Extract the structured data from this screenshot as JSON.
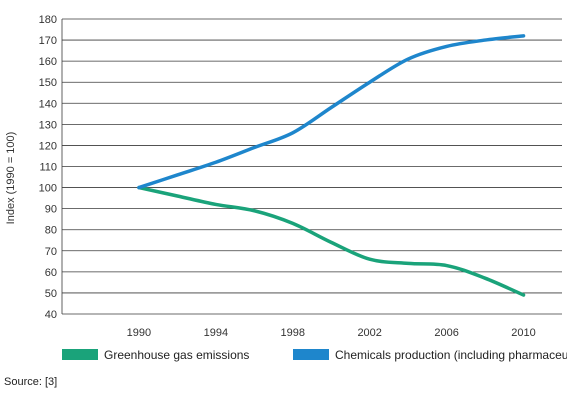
{
  "chart_data": {
    "type": "line",
    "title": "",
    "xlabel": "",
    "ylabel": "Index (1990 = 100)",
    "ylim": [
      40,
      180
    ],
    "yticks": [
      40,
      50,
      60,
      70,
      80,
      90,
      100,
      110,
      120,
      130,
      140,
      150,
      160,
      170,
      180
    ],
    "xlim": [
      1986,
      2012
    ],
    "xticks": [
      1990,
      1994,
      1998,
      2002,
      2006,
      2010
    ],
    "grid": "horizontal",
    "legend_placement": "bottom",
    "series": [
      {
        "name": "Greenhouse gas emissions",
        "color": "#1aa37a",
        "x": [
          1990,
          1992,
          1994,
          1996,
          1998,
          2000,
          2002,
          2004,
          2006,
          2008,
          2010
        ],
        "y": [
          100,
          96,
          92,
          89,
          83,
          74,
          66,
          64,
          63,
          57,
          49
        ]
      },
      {
        "name": "Chemicals production (including pharmaceuticals)",
        "color": "#1e86cc",
        "x": [
          1990,
          1992,
          1994,
          1996,
          1998,
          2000,
          2002,
          2004,
          2006,
          2008,
          2010
        ],
        "y": [
          100,
          106,
          112,
          119,
          126,
          138,
          150,
          161,
          167,
          170,
          172
        ]
      }
    ]
  },
  "source_text": "Source: [3]"
}
